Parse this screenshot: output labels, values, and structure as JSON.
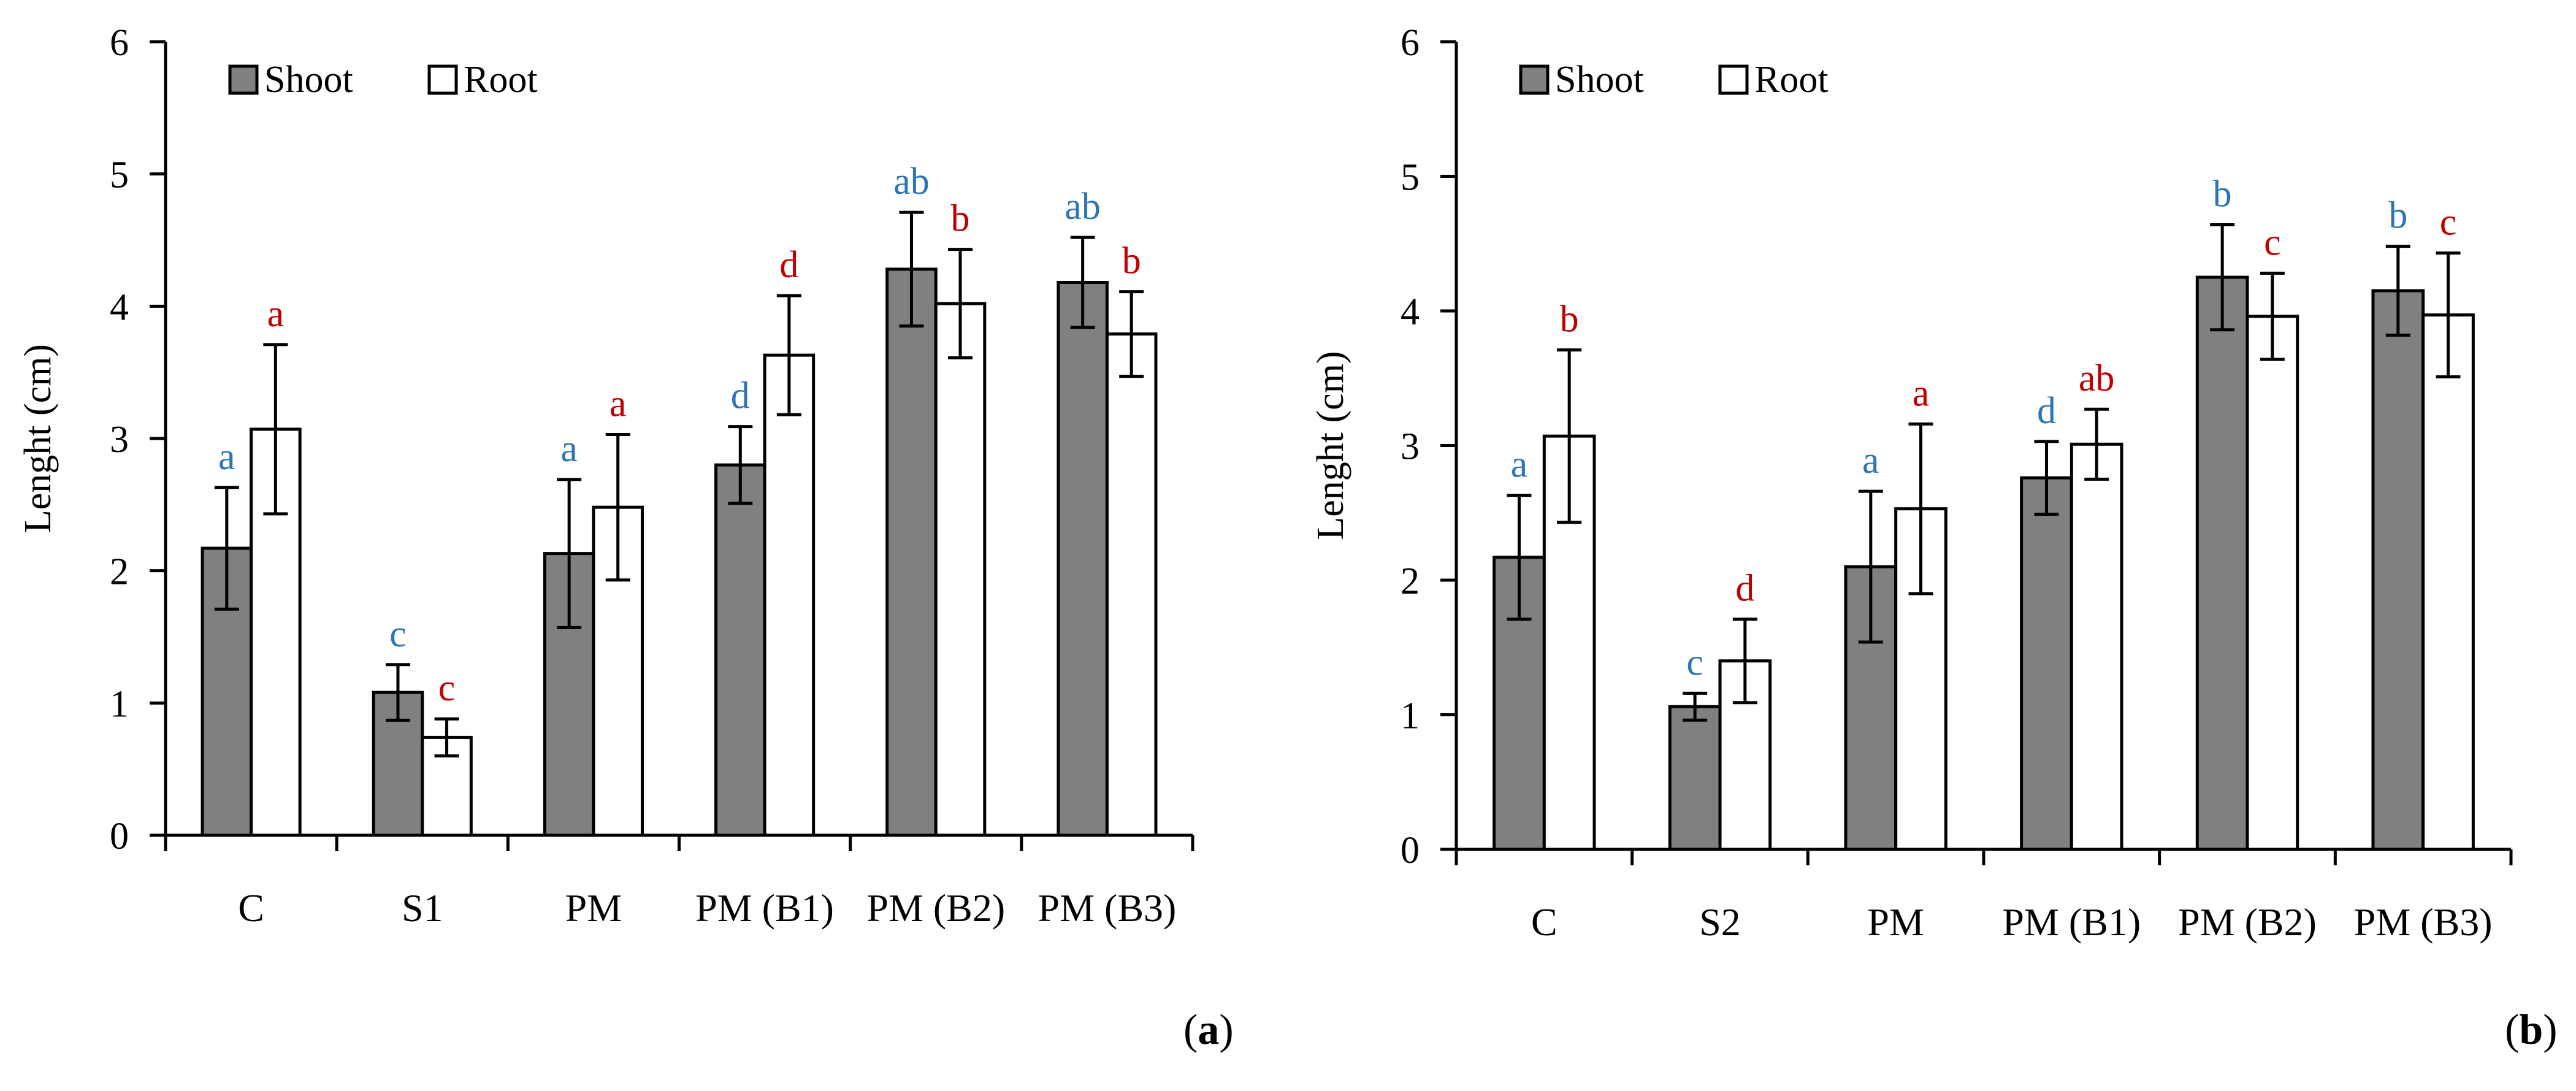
{
  "colors": {
    "shoot_fill": "#808080",
    "root_fill": "#ffffff",
    "outline": "#000000",
    "letter_shoot": "#2e75b6",
    "letter_root": "#c00000"
  },
  "chart_data": [
    {
      "type": "bar",
      "panel": "a",
      "panel_label_open": "(",
      "panel_label_letter": "a",
      "panel_label_close": ")",
      "title": "",
      "xlabel": "",
      "ylabel": "Lenght (cm)",
      "ylim": [
        0,
        6
      ],
      "yticks": [
        "0",
        "1",
        "2",
        "3",
        "4",
        "5",
        "6"
      ],
      "legend_position": "top-left",
      "categories": [
        "C",
        "S1",
        "PM",
        "PM (B1)",
        "PM (B2)",
        "PM (B3)"
      ],
      "series": [
        {
          "name": "Shoot",
          "values": [
            2.17,
            1.08,
            2.13,
            2.8,
            4.28,
            4.18
          ],
          "errors": [
            0.46,
            0.21,
            0.56,
            0.29,
            0.43,
            0.34
          ],
          "letters": [
            "a",
            "c",
            "a",
            "d",
            "ab",
            "ab"
          ]
        },
        {
          "name": "Root",
          "values": [
            3.07,
            0.74,
            2.48,
            3.63,
            4.02,
            3.79
          ],
          "errors": [
            0.64,
            0.14,
            0.55,
            0.45,
            0.41,
            0.32
          ],
          "letters": [
            "a",
            "c",
            "a",
            "d",
            "b",
            "b"
          ]
        }
      ]
    },
    {
      "type": "bar",
      "panel": "b",
      "panel_label_open": "(",
      "panel_label_letter": "b",
      "panel_label_close": ")",
      "title": "",
      "xlabel": "",
      "ylabel": "Lenght (cm)",
      "ylim": [
        0,
        6
      ],
      "yticks": [
        "0",
        "1",
        "2",
        "3",
        "4",
        "5",
        "6"
      ],
      "legend_position": "top-left",
      "categories": [
        "C",
        "S2",
        "PM",
        "PM (B1)",
        "PM (B2)",
        "PM (B3)"
      ],
      "series": [
        {
          "name": "Shoot",
          "values": [
            2.17,
            1.06,
            2.1,
            2.76,
            4.25,
            4.15
          ],
          "errors": [
            0.46,
            0.1,
            0.56,
            0.27,
            0.39,
            0.33
          ],
          "letters": [
            "a",
            "c",
            "a",
            "d",
            "b",
            "b"
          ]
        },
        {
          "name": "Root",
          "values": [
            3.07,
            1.4,
            2.53,
            3.01,
            3.96,
            3.97
          ],
          "errors": [
            0.64,
            0.31,
            0.63,
            0.26,
            0.32,
            0.46
          ],
          "letters": [
            "b",
            "d",
            "a",
            "ab",
            "c",
            "c"
          ]
        }
      ]
    }
  ]
}
